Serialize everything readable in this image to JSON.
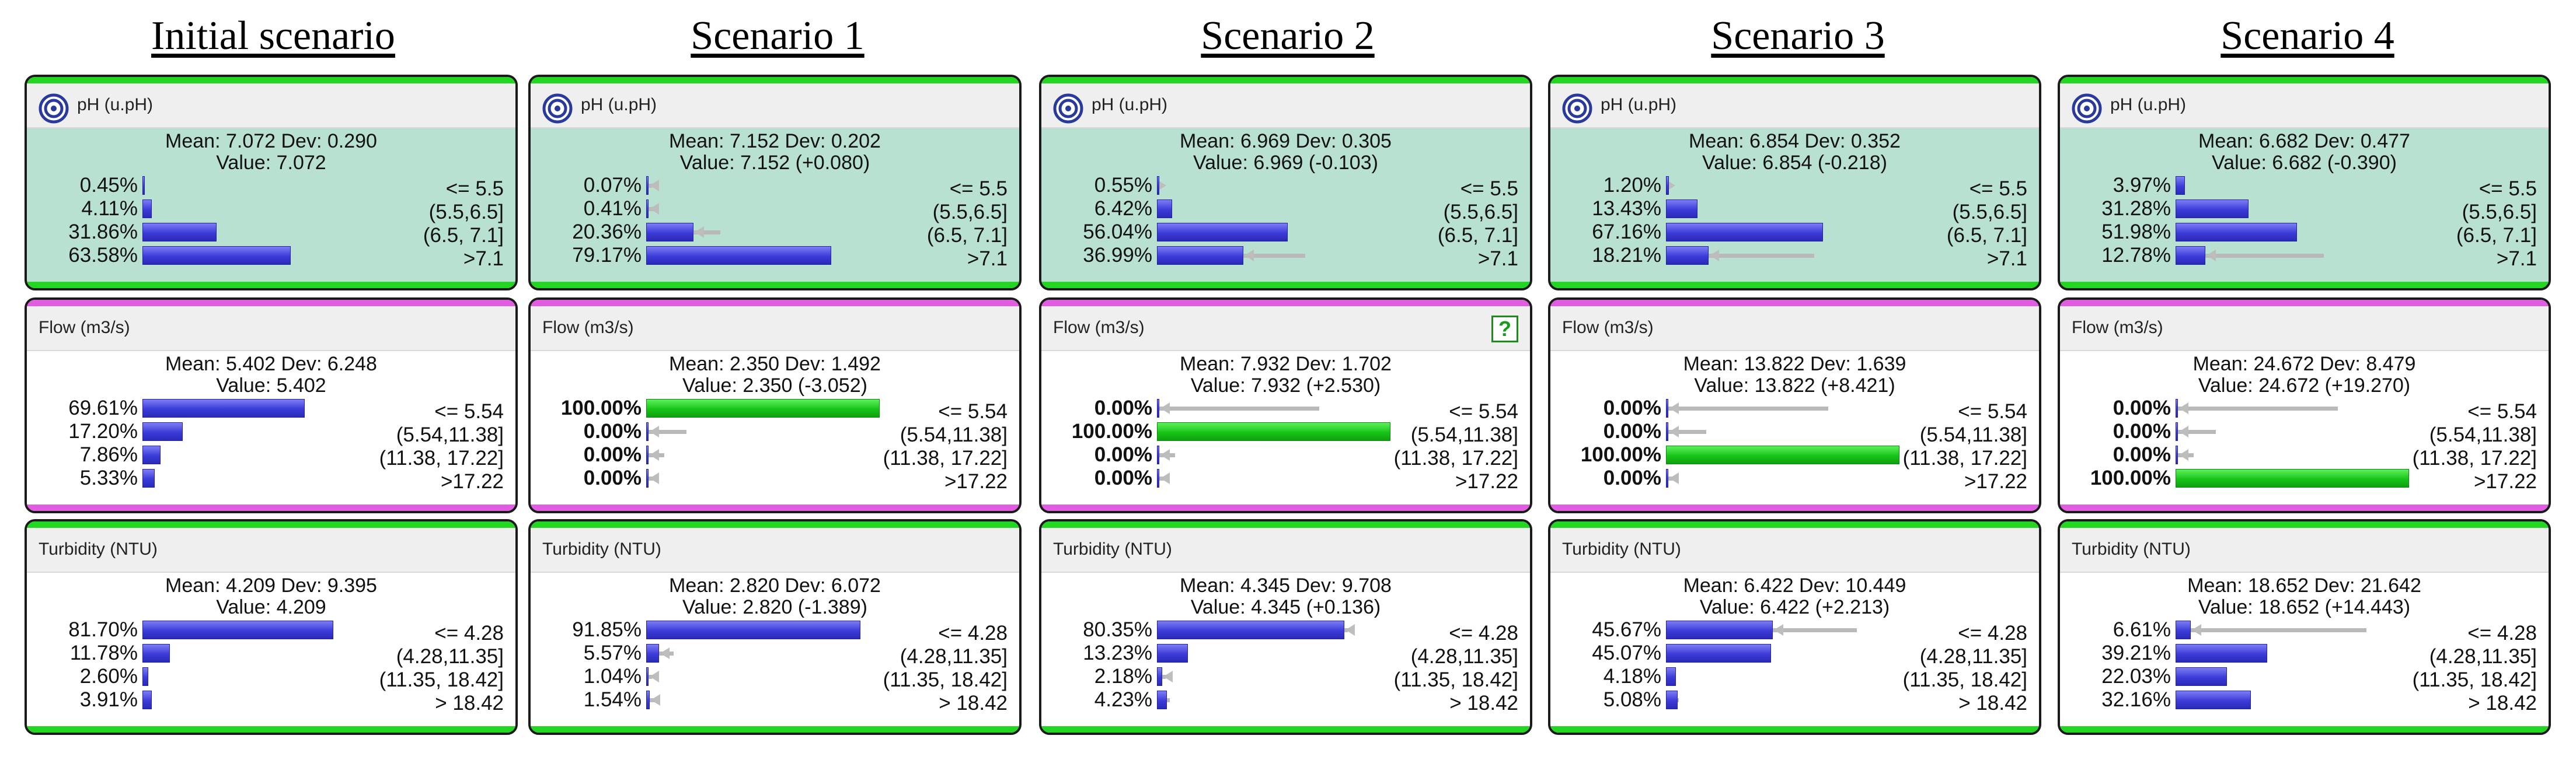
{
  "columns": [
    {
      "title": "Initial scenario",
      "nodes": [
        {
          "type": "ph",
          "title": "pH (u.pH)",
          "icon": "target-icon",
          "stats": {
            "line1": "Mean: 7.072 Dev: 0.290",
            "line2": "Value: 7.072"
          },
          "states": [
            {
              "pct": "0.45%",
              "value": 0.45,
              "label": "<= 5.5",
              "bold": false
            },
            {
              "pct": "4.11%",
              "value": 4.11,
              "label": "(5.5,6.5]",
              "bold": false
            },
            {
              "pct": "31.86%",
              "value": 31.86,
              "label": "(6.5, 7.1]",
              "bold": false
            },
            {
              "pct": "63.58%",
              "value": 63.58,
              "label": ">7.1",
              "bold": false
            }
          ]
        },
        {
          "type": "flow",
          "title": "Flow (m3/s)",
          "stats": {
            "line1": "Mean: 5.402 Dev: 6.248",
            "line2": "Value: 5.402"
          },
          "states": [
            {
              "pct": "69.61%",
              "value": 69.61,
              "label": "<= 5.54",
              "bold": false
            },
            {
              "pct": "17.20%",
              "value": 17.2,
              "label": "(5.54,11.38]",
              "bold": false
            },
            {
              "pct": "7.86%",
              "value": 7.86,
              "label": "(11.38, 17.22]",
              "bold": false
            },
            {
              "pct": "5.33%",
              "value": 5.33,
              "label": ">17.22",
              "bold": false
            }
          ]
        },
        {
          "type": "turb",
          "title": "Turbidity (NTU)",
          "stats": {
            "line1": "Mean: 4.209 Dev: 9.395",
            "line2": "Value: 4.209"
          },
          "states": [
            {
              "pct": "81.70%",
              "value": 81.7,
              "label": "<= 4.28",
              "bold": false
            },
            {
              "pct": "11.78%",
              "value": 11.78,
              "label": "(4.28,11.35]",
              "bold": false
            },
            {
              "pct": "2.60%",
              "value": 2.6,
              "label": "(11.35, 18.42]",
              "bold": false
            },
            {
              "pct": "3.91%",
              "value": 3.91,
              "label": "> 18.42",
              "bold": false
            }
          ]
        }
      ]
    },
    {
      "title": "Scenario 1",
      "nodes": [
        {
          "type": "ph",
          "title": "pH (u.pH)",
          "icon": "target-icon",
          "stats": {
            "line1": "Mean: 7.152 Dev: 0.202",
            "line2": "Value: 7.152 (+0.080)"
          },
          "states": [
            {
              "pct": "0.07%",
              "value": 0.07,
              "prior": 0.45,
              "label": "<= 5.5",
              "bold": false
            },
            {
              "pct": "0.41%",
              "value": 0.41,
              "prior": 4.11,
              "label": "(5.5,6.5]",
              "bold": false
            },
            {
              "pct": "20.36%",
              "value": 20.36,
              "prior": 31.86,
              "label": "(6.5, 7.1]",
              "bold": false
            },
            {
              "pct": "79.17%",
              "value": 79.17,
              "prior": 63.58,
              "label": ">7.1",
              "bold": false
            }
          ]
        },
        {
          "type": "flow",
          "title": "Flow (m3/s)",
          "stats": {
            "line1": "Mean: 2.350 Dev: 1.492",
            "line2": "Value: 2.350 (-3.052)"
          },
          "states": [
            {
              "pct": "100.00%",
              "value": 100,
              "prior": 69.61,
              "label": "<= 5.54",
              "bold": true,
              "evidence": true
            },
            {
              "pct": "0.00%",
              "value": 0,
              "prior": 17.2,
              "label": "(5.54,11.38]",
              "bold": true
            },
            {
              "pct": "0.00%",
              "value": 0,
              "prior": 7.86,
              "label": "(11.38, 17.22]",
              "bold": true
            },
            {
              "pct": "0.00%",
              "value": 0,
              "prior": 5.33,
              "label": ">17.22",
              "bold": true
            }
          ]
        },
        {
          "type": "turb",
          "title": "Turbidity (NTU)",
          "stats": {
            "line1": "Mean: 2.820 Dev: 6.072",
            "line2": "Value: 2.820 (-1.389)"
          },
          "states": [
            {
              "pct": "91.85%",
              "value": 91.85,
              "prior": 81.7,
              "label": "<= 4.28",
              "bold": false
            },
            {
              "pct": "5.57%",
              "value": 5.57,
              "prior": 11.78,
              "label": "(4.28,11.35]",
              "bold": false
            },
            {
              "pct": "1.04%",
              "value": 1.04,
              "prior": 2.6,
              "label": "(11.35, 18.42]",
              "bold": false
            },
            {
              "pct": "1.54%",
              "value": 1.54,
              "prior": 3.91,
              "label": "> 18.42",
              "bold": false
            }
          ]
        }
      ]
    },
    {
      "title": "Scenario 2",
      "nodes": [
        {
          "type": "ph",
          "title": "pH (u.pH)",
          "icon": "target-icon",
          "stats": {
            "line1": "Mean: 6.969 Dev: 0.305",
            "line2": "Value: 6.969 (-0.103)"
          },
          "states": [
            {
              "pct": "0.55%",
              "value": 0.55,
              "prior": 0.45,
              "label": "<= 5.5",
              "bold": false
            },
            {
              "pct": "6.42%",
              "value": 6.42,
              "prior": 4.11,
              "label": "(5.5,6.5]",
              "bold": false
            },
            {
              "pct": "56.04%",
              "value": 56.04,
              "prior": 31.86,
              "label": "(6.5, 7.1]",
              "bold": false
            },
            {
              "pct": "36.99%",
              "value": 36.99,
              "prior": 63.58,
              "label": ">7.1",
              "bold": false
            }
          ]
        },
        {
          "type": "flow",
          "title": "Flow (m3/s)",
          "help": "?",
          "stats": {
            "line1": "Mean: 7.932 Dev: 1.702",
            "line2": "Value: 7.932 (+2.530)"
          },
          "states": [
            {
              "pct": "0.00%",
              "value": 0,
              "prior": 69.61,
              "label": "<= 5.54",
              "bold": true
            },
            {
              "pct": "100.00%",
              "value": 100,
              "prior": 17.2,
              "label": "(5.54,11.38]",
              "bold": true,
              "evidence": true
            },
            {
              "pct": "0.00%",
              "value": 0,
              "prior": 7.86,
              "label": "(11.38, 17.22]",
              "bold": true
            },
            {
              "pct": "0.00%",
              "value": 0,
              "prior": 5.33,
              "label": ">17.22",
              "bold": true
            }
          ]
        },
        {
          "type": "turb",
          "title": "Turbidity (NTU)",
          "stats": {
            "line1": "Mean: 4.345 Dev: 9.708",
            "line2": "Value: 4.345 (+0.136)"
          },
          "states": [
            {
              "pct": "80.35%",
              "value": 80.35,
              "prior": 81.7,
              "label": "<= 4.28",
              "bold": false
            },
            {
              "pct": "13.23%",
              "value": 13.23,
              "prior": 11.78,
              "label": "(4.28,11.35]",
              "bold": false
            },
            {
              "pct": "2.18%",
              "value": 2.18,
              "prior": 2.6,
              "label": "(11.35, 18.42]",
              "bold": false
            },
            {
              "pct": "4.23%",
              "value": 4.23,
              "prior": 3.91,
              "label": "> 18.42",
              "bold": false
            }
          ]
        }
      ]
    },
    {
      "title": "Scenario 3",
      "nodes": [
        {
          "type": "ph",
          "title": "pH (u.pH)",
          "icon": "target-icon",
          "stats": {
            "line1": "Mean: 6.854 Dev: 0.352",
            "line2": "Value: 6.854 (-0.218)"
          },
          "states": [
            {
              "pct": "1.20%",
              "value": 1.2,
              "prior": 0.45,
              "label": "<= 5.5",
              "bold": false
            },
            {
              "pct": "13.43%",
              "value": 13.43,
              "prior": 4.11,
              "label": "(5.5,6.5]",
              "bold": false
            },
            {
              "pct": "67.16%",
              "value": 67.16,
              "prior": 31.86,
              "label": "(6.5, 7.1]",
              "bold": false
            },
            {
              "pct": "18.21%",
              "value": 18.21,
              "prior": 63.58,
              "label": ">7.1",
              "bold": false
            }
          ]
        },
        {
          "type": "flow",
          "title": "Flow (m3/s)",
          "stats": {
            "line1": "Mean: 13.822 Dev: 1.639",
            "line2": "Value: 13.822 (+8.421)"
          },
          "states": [
            {
              "pct": "0.00%",
              "value": 0,
              "prior": 69.61,
              "label": "<= 5.54",
              "bold": true
            },
            {
              "pct": "0.00%",
              "value": 0,
              "prior": 17.2,
              "label": "(5.54,11.38]",
              "bold": true
            },
            {
              "pct": "100.00%",
              "value": 100,
              "prior": 7.86,
              "label": "(11.38, 17.22]",
              "bold": true,
              "evidence": true
            },
            {
              "pct": "0.00%",
              "value": 0,
              "prior": 5.33,
              "label": ">17.22",
              "bold": true
            }
          ]
        },
        {
          "type": "turb",
          "title": "Turbidity (NTU)",
          "stats": {
            "line1": "Mean: 6.422 Dev: 10.449",
            "line2": "Value: 6.422 (+2.213)"
          },
          "states": [
            {
              "pct": "45.67%",
              "value": 45.67,
              "prior": 81.7,
              "label": "<= 4.28",
              "bold": false
            },
            {
              "pct": "45.07%",
              "value": 45.07,
              "prior": 11.78,
              "label": "(4.28,11.35]",
              "bold": false
            },
            {
              "pct": "4.18%",
              "value": 4.18,
              "prior": 2.6,
              "label": "(11.35, 18.42]",
              "bold": false
            },
            {
              "pct": "5.08%",
              "value": 5.08,
              "prior": 3.91,
              "label": "> 18.42",
              "bold": false
            }
          ]
        }
      ]
    },
    {
      "title": "Scenario 4",
      "nodes": [
        {
          "type": "ph",
          "title": "pH (u.pH)",
          "icon": "target-icon",
          "stats": {
            "line1": "Mean: 6.682 Dev: 0.477",
            "line2": "Value: 6.682 (-0.390)"
          },
          "states": [
            {
              "pct": "3.97%",
              "value": 3.97,
              "prior": 0.45,
              "label": "<= 5.5",
              "bold": false
            },
            {
              "pct": "31.28%",
              "value": 31.28,
              "prior": 4.11,
              "label": "(5.5,6.5]",
              "bold": false
            },
            {
              "pct": "51.98%",
              "value": 51.98,
              "prior": 31.86,
              "label": "(6.5, 7.1]",
              "bold": false
            },
            {
              "pct": "12.78%",
              "value": 12.78,
              "prior": 63.58,
              "label": ">7.1",
              "bold": false
            }
          ]
        },
        {
          "type": "flow",
          "title": "Flow (m3/s)",
          "stats": {
            "line1": "Mean: 24.672 Dev: 8.479",
            "line2": "Value: 24.672 (+19.270)"
          },
          "states": [
            {
              "pct": "0.00%",
              "value": 0,
              "prior": 69.61,
              "label": "<= 5.54",
              "bold": true
            },
            {
              "pct": "0.00%",
              "value": 0,
              "prior": 17.2,
              "label": "(5.54,11.38]",
              "bold": true
            },
            {
              "pct": "0.00%",
              "value": 0,
              "prior": 7.86,
              "label": "(11.38, 17.22]",
              "bold": true
            },
            {
              "pct": "100.00%",
              "value": 100,
              "prior": 5.33,
              "label": ">17.22",
              "bold": true,
              "evidence": true
            }
          ]
        },
        {
          "type": "turb",
          "title": "Turbidity (NTU)",
          "stats": {
            "line1": "Mean: 18.652 Dev: 21.642",
            "line2": "Value: 18.652 (+14.443)"
          },
          "states": [
            {
              "pct": "6.61%",
              "value": 6.61,
              "prior": 81.7,
              "label": "<= 4.28",
              "bold": false
            },
            {
              "pct": "39.21%",
              "value": 39.21,
              "prior": 11.78,
              "label": "(4.28,11.35]",
              "bold": false
            },
            {
              "pct": "22.03%",
              "value": 22.03,
              "prior": 2.6,
              "label": "(11.35, 18.42]",
              "bold": false
            },
            {
              "pct": "32.16%",
              "value": 32.16,
              "prior": 3.91,
              "label": "> 18.42",
              "bold": false
            }
          ]
        }
      ]
    }
  ],
  "colors": {
    "ph_bg": "#b8e1d2",
    "header_bg": "#efefef",
    "stripe_green": "#22d622",
    "stripe_magenta": "#e05ce0",
    "bar_blue": "#3b3bd8",
    "bar_green": "#18c418",
    "ghost": "#b9b9b9"
  }
}
